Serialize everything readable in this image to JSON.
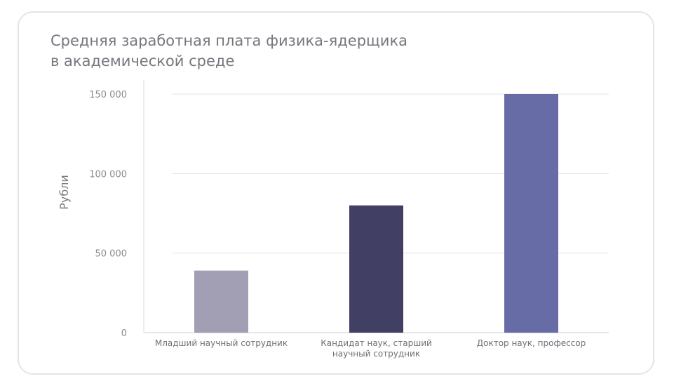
{
  "chart_data": {
    "type": "bar",
    "title_lines": [
      "Средняя заработная плата физика-ядерщика",
      "в академической среде"
    ],
    "ylabel": "Рубли",
    "xlabel": "",
    "categories": [
      [
        "Младший научный сотрудник"
      ],
      [
        "Кандидат наук, старший",
        "научный сотрудник"
      ],
      [
        "Доктор наук, профессор"
      ]
    ],
    "values": [
      39000,
      80000,
      150000
    ],
    "bar_colors": [
      "#a29fb4",
      "#413f64",
      "#686ca6"
    ],
    "ylim": [
      0,
      150000
    ],
    "yticks": [
      0,
      50000,
      100000,
      150000
    ],
    "ytick_labels": [
      "0",
      "50 000",
      "100 000",
      "150 000"
    ],
    "grid": true,
    "legend": false
  }
}
